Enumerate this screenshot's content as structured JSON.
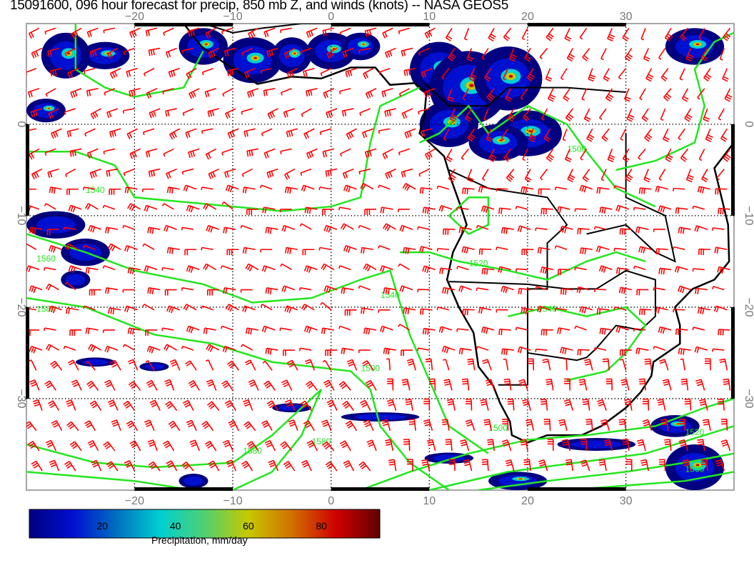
{
  "title": "15091600, 096 hour forecast for precip, 850 mb Z, and winds (knots) -- NASA GEOS5",
  "map": {
    "lon_range": [
      -31,
      41
    ],
    "lat_range": [
      -40,
      11
    ],
    "lon_ticks": [
      "−20",
      "−10",
      "0",
      "10",
      "20",
      "30"
    ],
    "lon_tick_values": [
      -20,
      -10,
      0,
      10,
      20,
      30
    ],
    "lat_ticks": [
      "0",
      "−10",
      "−20",
      "−30"
    ],
    "lat_tick_values": [
      0,
      -10,
      -20,
      -30
    ],
    "contour_labels": [
      "1540",
      "1560",
      "1580",
      "1540",
      "1500",
      "1520",
      "1540",
      "1500",
      "1580",
      "1580",
      "1500",
      "1520",
      "1560"
    ],
    "colors": {
      "contour": "#22e61e",
      "wind_barbs": "#ff0000",
      "coastline": "#000000",
      "grid": "#000000"
    }
  },
  "colorbar": {
    "label": "Precipitation, mm/day",
    "ticks": [
      "20",
      "40",
      "60",
      "80"
    ],
    "tick_values": [
      20,
      40,
      60,
      80
    ],
    "range": [
      0,
      96
    ],
    "colors": [
      "#000080",
      "#0010d0",
      "#0070c0",
      "#00d0d0",
      "#50d070",
      "#c8c800",
      "#d07000",
      "#d00000",
      "#600000"
    ]
  }
}
